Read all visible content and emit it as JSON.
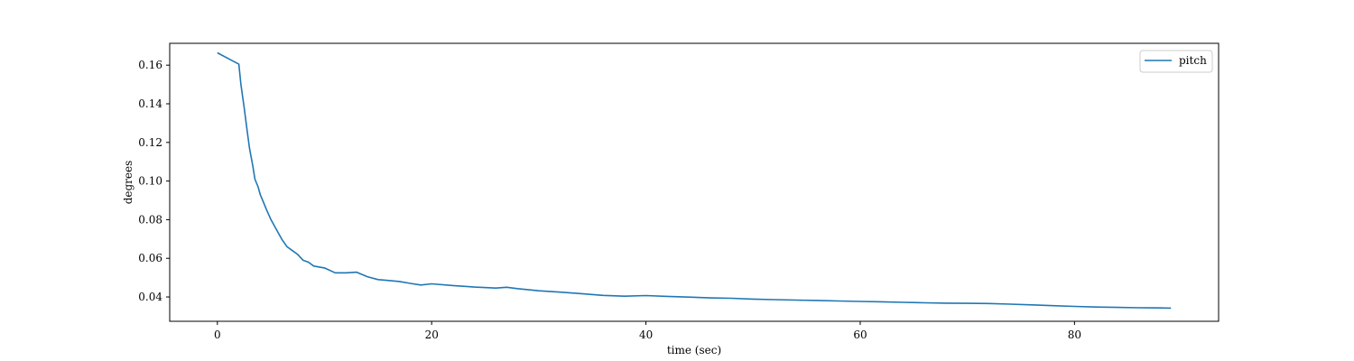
{
  "chart_data": {
    "type": "line",
    "xlabel": "time (sec)",
    "ylabel": "degrees",
    "xlim": [
      -4.45,
      93.45
    ],
    "ylim": [
      0.0274,
      0.1713
    ],
    "xticks": [
      0,
      20,
      40,
      60,
      80
    ],
    "xtick_labels": [
      "0",
      "20",
      "40",
      "60",
      "80"
    ],
    "yticks": [
      0.04,
      0.06,
      0.08,
      0.1,
      0.12,
      0.14,
      0.16
    ],
    "ytick_labels": [
      "0.04",
      "0.06",
      "0.08",
      "0.10",
      "0.12",
      "0.14",
      "0.16"
    ],
    "grid": false,
    "legend_position": "top-right",
    "series": [
      {
        "name": "pitch",
        "color": "#1f77b4",
        "x": [
          0,
          2.0,
          2.2,
          2.5,
          2.8,
          3.0,
          3.3,
          3.5,
          3.8,
          4.0,
          4.3,
          4.6,
          5.0,
          5.5,
          6.0,
          6.5,
          7.0,
          7.5,
          8.0,
          8.5,
          9.0,
          10.0,
          11.0,
          12.0,
          13.0,
          14.0,
          15.0,
          16.0,
          17.0,
          18.0,
          19.0,
          20.0,
          22.0,
          24.0,
          26.0,
          27.0,
          28.0,
          30.0,
          32.0,
          34.0,
          36.0,
          38.0,
          40.0,
          42.0,
          44.0,
          46.0,
          48.0,
          50.0,
          52.0,
          54.0,
          56.0,
          58.0,
          60.0,
          62.0,
          64.0,
          66.0,
          68.0,
          70.0,
          72.0,
          74.0,
          76.0,
          78.0,
          80.0,
          82.0,
          84.0,
          86.0,
          88.0,
          89.0
        ],
        "values": [
          0.1664,
          0.1605,
          0.15,
          0.138,
          0.125,
          0.117,
          0.108,
          0.101,
          0.097,
          0.093,
          0.089,
          0.085,
          0.08,
          0.075,
          0.07,
          0.066,
          0.064,
          0.062,
          0.059,
          0.058,
          0.056,
          0.055,
          0.0525,
          0.0525,
          0.0528,
          0.0505,
          0.049,
          0.0485,
          0.048,
          0.047,
          0.0462,
          0.0468,
          0.0459,
          0.0451,
          0.0446,
          0.045,
          0.0443,
          0.0432,
          0.0425,
          0.0417,
          0.0408,
          0.0404,
          0.0407,
          0.0403,
          0.0399,
          0.0395,
          0.0393,
          0.0389,
          0.0386,
          0.0384,
          0.0382,
          0.0379,
          0.0377,
          0.0375,
          0.0372,
          0.037,
          0.0368,
          0.0367,
          0.0366,
          0.0363,
          0.0359,
          0.0355,
          0.0351,
          0.0348,
          0.0346,
          0.0344,
          0.0343,
          0.0342
        ]
      }
    ]
  }
}
